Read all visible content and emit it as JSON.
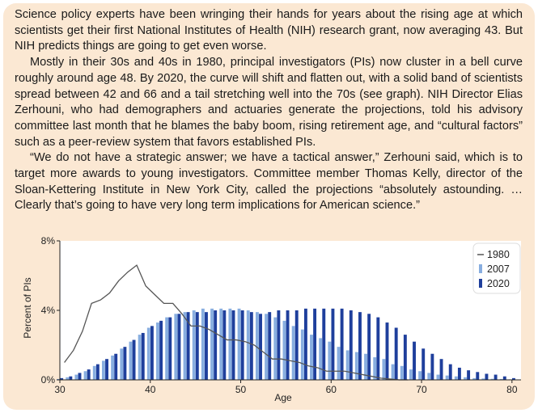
{
  "article": {
    "paragraphs": [
      "Science policy experts have been wringing their hands for years about the rising age at which scientists get their first National Institutes of Health (NIH) research grant, now averaging 43. But NIH predicts things are going to get even worse.",
      "Mostly in their 30s and 40s in 1980, principal investigators (PIs) now cluster in a bell curve roughly around age 48. By 2020, the curve will shift and flatten out, with a solid band of scientists spread between 42 and 66 and a tail stretching well into the 70s (see graph). NIH Director Elias Zerhouni, who had demographers and actuaries generate the projections, told his advisory committee last month that he blames the baby boom, rising retirement age, and “cultural factors” such as a peer-review system that favors established PIs.",
      "“We do not have a strategic answer; we have a tactical answer,” Zerhouni said, which is to target more awards to young investigators. Committee member Thomas Kelly, director of the Sloan-Kettering Institute in New York City, called the projections “absolutely astounding. … Clearly that’s going to have very long term implications for American science.”"
    ]
  },
  "chart_data": {
    "type": "bar",
    "xlabel": "Age",
    "ylabel": "Percent of PIs",
    "xlim": [
      30,
      81
    ],
    "ylim": [
      0,
      8
    ],
    "x_ticks": [
      "30",
      "40",
      "50",
      "60",
      "70",
      "80"
    ],
    "y_ticks": [
      "0%",
      "4%",
      "8%"
    ],
    "legend_position": "right",
    "colors": {
      "s2007": "#88aee0",
      "s2020": "#1f3f9c",
      "s1980": "#555555"
    },
    "series": [
      {
        "name": "1980",
        "kind": "line",
        "x": [
          30.5,
          31.5,
          32.5,
          33.5,
          34.5,
          35.5,
          36.5,
          37.5,
          38.5,
          39.5,
          40.5,
          41.5,
          42.5,
          43.5,
          44.5,
          45.5,
          46.5,
          47.5,
          48.5,
          49.5,
          50.5,
          51.5,
          52.5,
          53.5,
          54.5,
          55.5,
          56.5,
          57.5,
          58.5,
          59.5,
          60.5,
          61.5,
          62.5,
          63.5,
          64.5,
          65.5,
          66.5,
          67.5,
          68.5
        ],
        "values": [
          1.0,
          1.7,
          2.8,
          4.4,
          4.6,
          5.0,
          5.7,
          6.2,
          6.6,
          5.4,
          4.9,
          4.4,
          4.4,
          3.8,
          3.1,
          3.1,
          2.9,
          2.6,
          2.3,
          2.3,
          2.2,
          2.0,
          1.6,
          1.2,
          1.2,
          1.1,
          1.0,
          0.8,
          0.7,
          0.5,
          0.5,
          0.5,
          0.4,
          0.3,
          0.2,
          0.1,
          0.05,
          0.0,
          0.0
        ]
      },
      {
        "name": "2007",
        "kind": "bar",
        "x": [
          30,
          31,
          32,
          33,
          34,
          35,
          36,
          37,
          38,
          39,
          40,
          41,
          42,
          43,
          44,
          45,
          46,
          47,
          48,
          49,
          50,
          51,
          52,
          53,
          54,
          55,
          56,
          57,
          58,
          59,
          60,
          61,
          62,
          63,
          64,
          65,
          66,
          67,
          68,
          69,
          70,
          71,
          72,
          73,
          74,
          75,
          76,
          77,
          78,
          79,
          80
        ],
        "values": [
          0.05,
          0.15,
          0.3,
          0.5,
          0.8,
          1.1,
          1.4,
          1.8,
          2.2,
          2.6,
          3.0,
          3.3,
          3.6,
          3.8,
          3.9,
          4.0,
          4.1,
          4.1,
          4.1,
          4.1,
          4.1,
          4.0,
          3.9,
          3.8,
          3.6,
          3.4,
          3.1,
          2.9,
          2.6,
          2.4,
          2.2,
          1.9,
          1.7,
          1.6,
          1.5,
          1.3,
          1.2,
          0.9,
          0.8,
          0.6,
          0.5,
          0.4,
          0.3,
          0.25,
          0.2,
          0.15,
          0.1,
          0.08,
          0.06,
          0.05,
          0.03
        ]
      },
      {
        "name": "2020",
        "kind": "bar",
        "x": [
          30,
          31,
          32,
          33,
          34,
          35,
          36,
          37,
          38,
          39,
          40,
          41,
          42,
          43,
          44,
          45,
          46,
          47,
          48,
          49,
          50,
          51,
          52,
          53,
          54,
          55,
          56,
          57,
          58,
          59,
          60,
          61,
          62,
          63,
          64,
          65,
          66,
          67,
          68,
          69,
          70,
          71,
          72,
          73,
          74,
          75,
          76,
          77,
          78,
          79,
          80
        ],
        "values": [
          0.1,
          0.2,
          0.4,
          0.6,
          0.9,
          1.2,
          1.5,
          1.9,
          2.3,
          2.7,
          3.1,
          3.4,
          3.6,
          3.8,
          3.9,
          3.9,
          3.9,
          4.0,
          4.0,
          4.0,
          4.0,
          3.9,
          3.8,
          3.9,
          4.0,
          4.0,
          4.0,
          4.1,
          4.1,
          4.1,
          4.1,
          4.1,
          4.0,
          3.9,
          3.8,
          3.6,
          3.3,
          3.0,
          2.6,
          2.2,
          1.8,
          1.5,
          1.2,
          0.9,
          0.7,
          0.55,
          0.45,
          0.35,
          0.3,
          0.2,
          0.1
        ]
      }
    ]
  }
}
